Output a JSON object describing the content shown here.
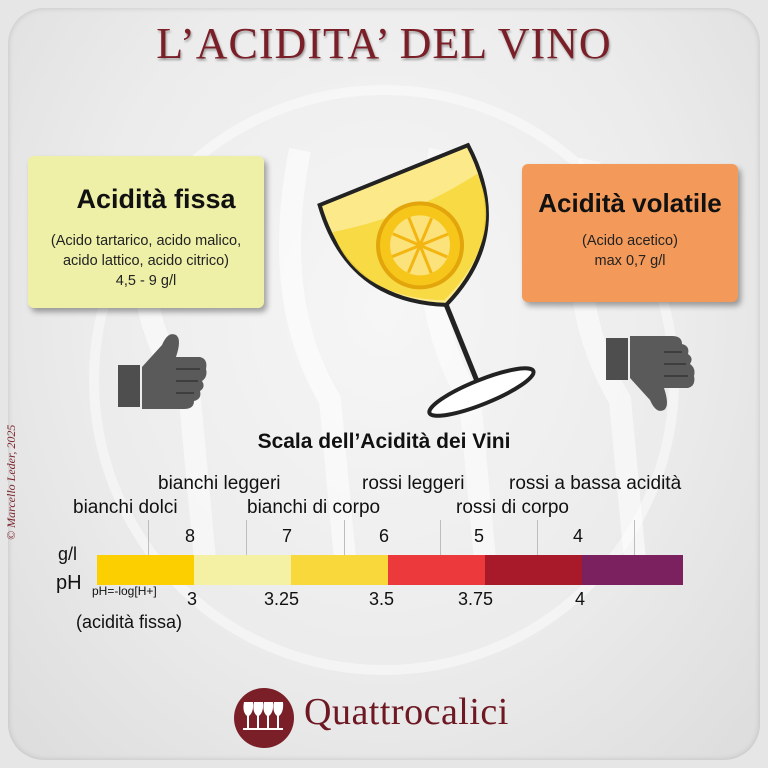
{
  "title": "L’ACIDITA’ DEL VINO",
  "copyright": "© Marcello Leder, 2025",
  "fixed_acidity": {
    "heading": "Acidità fissa",
    "line1": "(Acido tartarico, acido malico,",
    "line2": "acido lattico, acido citrico)",
    "line3": "4,5 - 9 g/l"
  },
  "volatile_acidity": {
    "heading": "Acidità volatile",
    "line1": "(Acido acetico)",
    "line2": "max 0,7 g/l"
  },
  "scale": {
    "title": "Scala dell’Acidità dei Vini",
    "row_gl_label": "g/l",
    "row_ph_label": "pH",
    "ph_formula": "pH=-log[H+]",
    "fixed_acidity_note": "(acidità fissa)",
    "categories": [
      "bianchi dolci",
      "bianchi leggeri",
      "bianchi di corpo",
      "rossi leggeri",
      "rossi di corpo",
      "rossi a bassa acidità"
    ],
    "gl_ticks": [
      "8",
      "7",
      "6",
      "5",
      "4"
    ],
    "ph_ticks": [
      "3",
      "3.25",
      "3.5",
      "3.75",
      "4"
    ],
    "segment_colors": [
      "#fcd000",
      "#f4f0a4",
      "#f8d83a",
      "#ec3a3c",
      "#a8192a",
      "#7c2160"
    ]
  },
  "brand": "Quattrocalici",
  "colors": {
    "title": "#7a1f28",
    "brand": "#6d1823",
    "fixed_box": "#eef0a8",
    "volatile_box": "#f39a5a"
  }
}
